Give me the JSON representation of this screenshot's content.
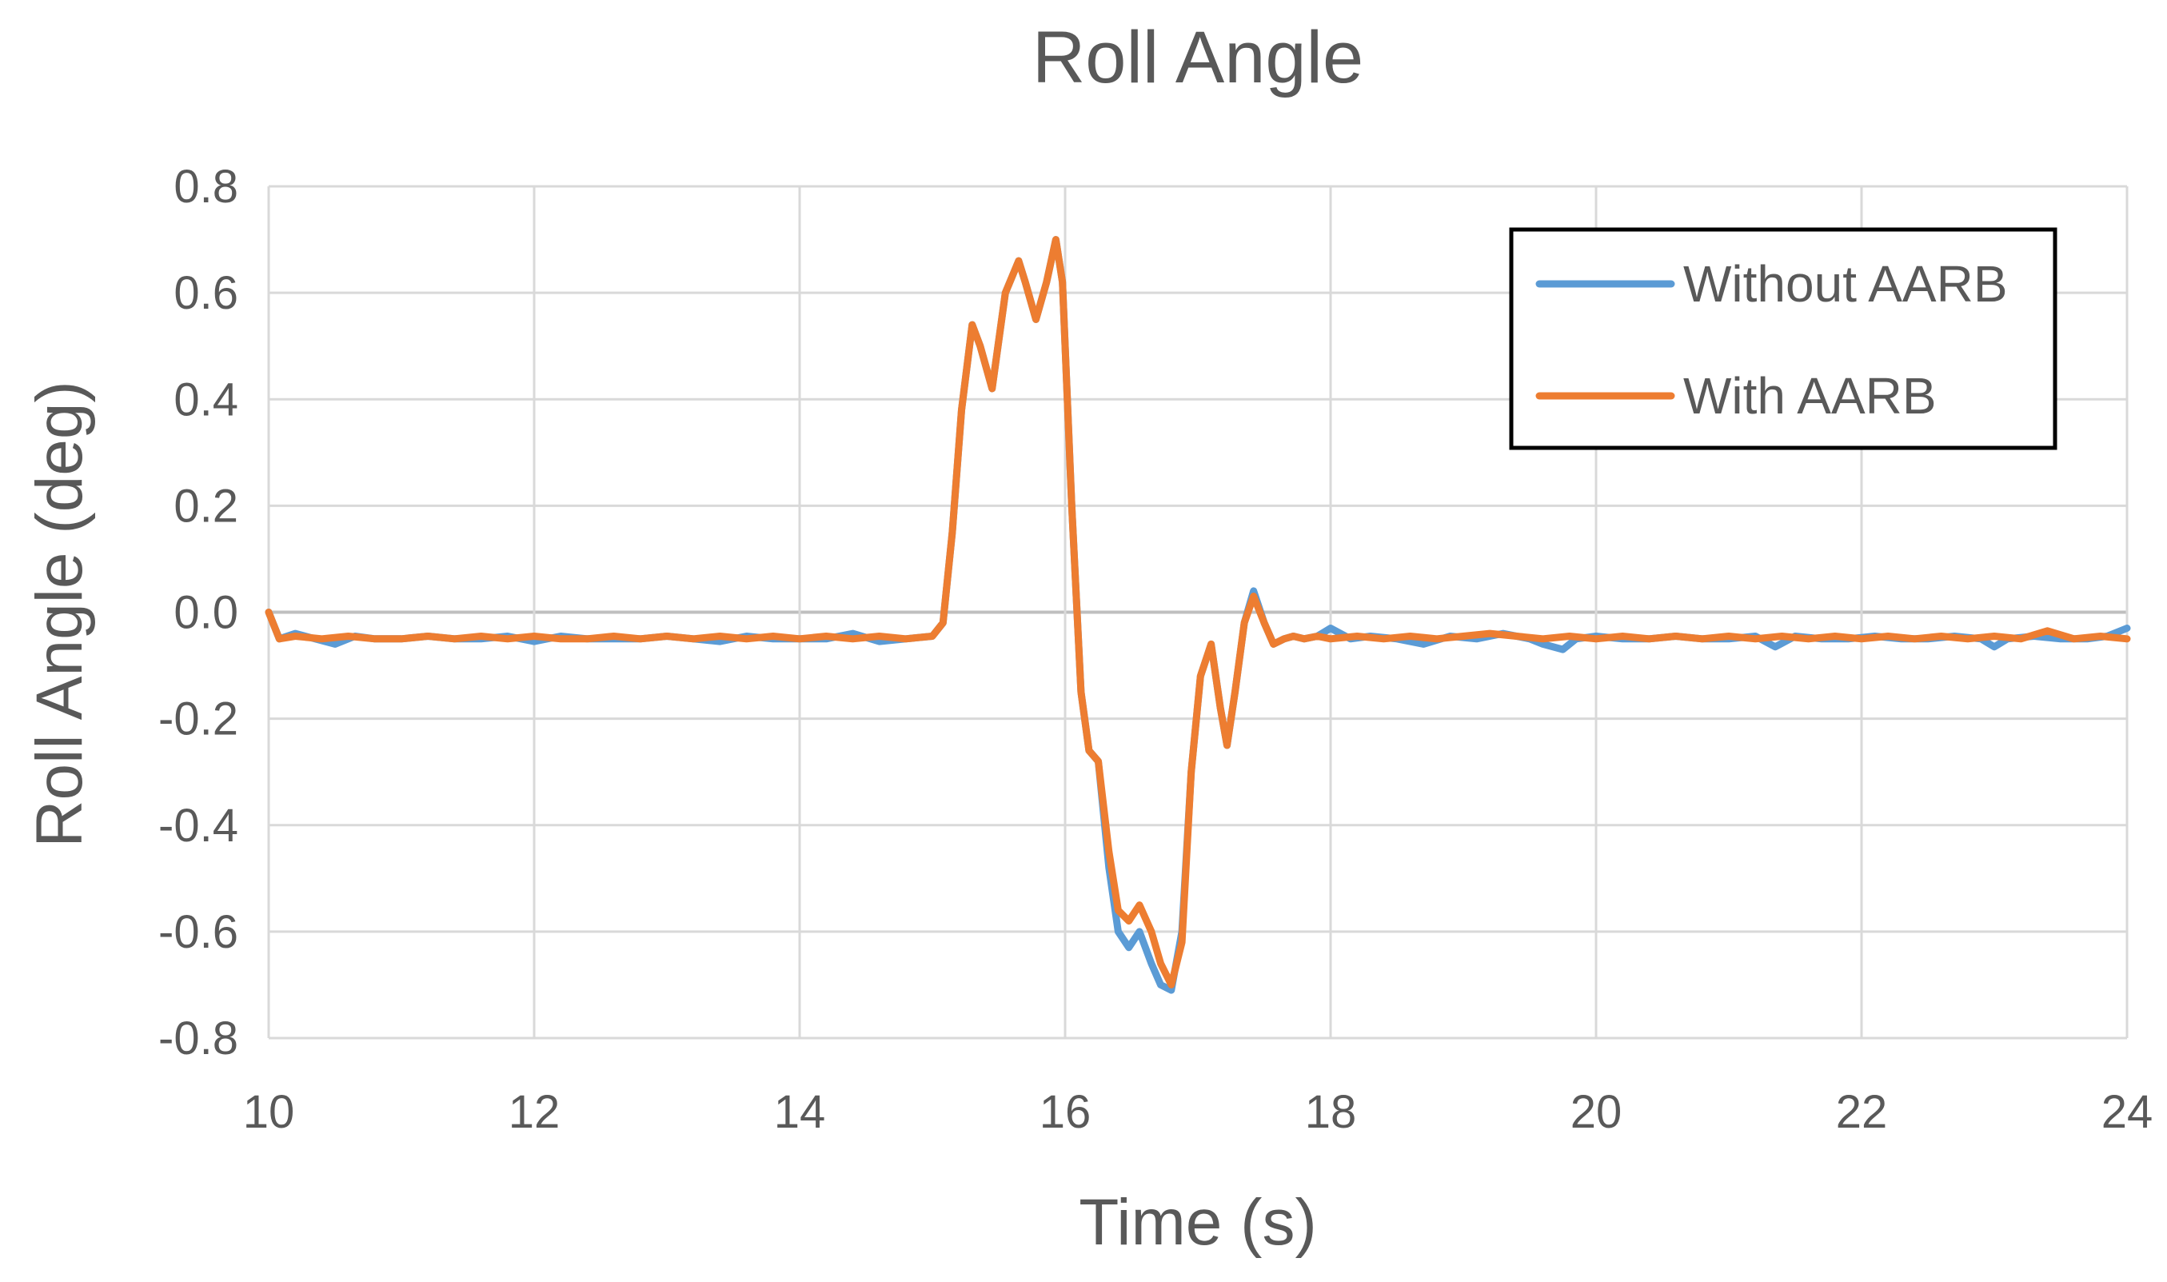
{
  "chart_data": {
    "type": "line",
    "title": "Roll Angle",
    "xlabel": "Time (s)",
    "ylabel": "Roll Angle (deg)",
    "xlim": [
      10,
      24
    ],
    "ylim": [
      -0.8,
      0.8
    ],
    "x_ticks": [
      10,
      12,
      14,
      16,
      18,
      20,
      22,
      24
    ],
    "x_tick_labels": [
      "10",
      "12",
      "14",
      "16",
      "18",
      "20",
      "22",
      "24"
    ],
    "y_ticks": [
      0.8,
      0.6,
      0.4,
      0.2,
      0.0,
      -0.2,
      -0.4,
      -0.6,
      -0.8
    ],
    "y_tick_labels": [
      "0.8",
      "0.6",
      "0.4",
      "0.2",
      "0.0",
      "-0.2",
      "-0.4",
      "-0.6",
      "-0.8"
    ],
    "grid": true,
    "legend_position": "top-right",
    "series": [
      {
        "name": "Without AARB",
        "color": "#5B9BD5",
        "x": [
          10.0,
          10.08,
          10.2,
          10.35,
          10.5,
          10.65,
          10.8,
          11.0,
          11.2,
          11.4,
          11.6,
          11.8,
          12.0,
          12.2,
          12.4,
          12.6,
          12.8,
          13.0,
          13.2,
          13.4,
          13.6,
          13.8,
          14.0,
          14.2,
          14.4,
          14.6,
          14.8,
          15.0,
          15.08,
          15.15,
          15.22,
          15.3,
          15.36,
          15.45,
          15.55,
          15.65,
          15.7,
          15.78,
          15.86,
          15.93,
          15.98,
          16.05,
          16.12,
          16.18,
          16.25,
          16.33,
          16.4,
          16.48,
          16.56,
          16.65,
          16.72,
          16.8,
          16.88,
          16.95,
          17.02,
          17.1,
          17.17,
          17.22,
          17.28,
          17.35,
          17.42,
          17.5,
          17.57,
          17.65,
          17.72,
          17.8,
          17.9,
          18.0,
          18.15,
          18.3,
          18.5,
          18.7,
          18.9,
          19.1,
          19.3,
          19.5,
          19.6,
          19.75,
          19.85,
          20.0,
          20.2,
          20.4,
          20.6,
          20.8,
          21.0,
          21.2,
          21.35,
          21.5,
          21.7,
          21.9,
          22.1,
          22.3,
          22.5,
          22.7,
          22.9,
          23.0,
          23.1,
          23.3,
          23.5,
          23.7,
          23.85,
          24.0
        ],
        "values": [
          0.0,
          -0.05,
          -0.04,
          -0.05,
          -0.06,
          -0.045,
          -0.05,
          -0.05,
          -0.045,
          -0.05,
          -0.05,
          -0.045,
          -0.055,
          -0.045,
          -0.05,
          -0.05,
          -0.05,
          -0.045,
          -0.05,
          -0.055,
          -0.045,
          -0.05,
          -0.05,
          -0.05,
          -0.04,
          -0.055,
          -0.05,
          -0.045,
          -0.02,
          0.15,
          0.38,
          0.54,
          0.5,
          0.42,
          0.6,
          0.66,
          0.62,
          0.55,
          0.62,
          0.7,
          0.62,
          0.2,
          -0.15,
          -0.26,
          -0.28,
          -0.48,
          -0.6,
          -0.63,
          -0.6,
          -0.66,
          -0.7,
          -0.71,
          -0.6,
          -0.3,
          -0.12,
          -0.06,
          -0.18,
          -0.25,
          -0.15,
          -0.02,
          0.04,
          -0.02,
          -0.06,
          -0.05,
          -0.045,
          -0.05,
          -0.045,
          -0.03,
          -0.05,
          -0.045,
          -0.05,
          -0.06,
          -0.045,
          -0.05,
          -0.04,
          -0.05,
          -0.06,
          -0.07,
          -0.05,
          -0.045,
          -0.05,
          -0.05,
          -0.045,
          -0.05,
          -0.05,
          -0.045,
          -0.065,
          -0.045,
          -0.05,
          -0.05,
          -0.045,
          -0.05,
          -0.05,
          -0.045,
          -0.05,
          -0.065,
          -0.05,
          -0.045,
          -0.05,
          -0.05,
          -0.045,
          -0.03
        ]
      },
      {
        "name": "With AARB",
        "color": "#ED7D31",
        "x": [
          10.0,
          10.08,
          10.2,
          10.4,
          10.6,
          10.8,
          11.0,
          11.2,
          11.4,
          11.6,
          11.8,
          12.0,
          12.2,
          12.4,
          12.6,
          12.8,
          13.0,
          13.2,
          13.4,
          13.6,
          13.8,
          14.0,
          14.2,
          14.4,
          14.6,
          14.8,
          15.0,
          15.08,
          15.15,
          15.22,
          15.3,
          15.36,
          15.45,
          15.55,
          15.65,
          15.7,
          15.78,
          15.86,
          15.93,
          15.98,
          16.05,
          16.12,
          16.18,
          16.25,
          16.33,
          16.4,
          16.48,
          16.56,
          16.65,
          16.72,
          16.8,
          16.88,
          16.95,
          17.02,
          17.1,
          17.17,
          17.22,
          17.28,
          17.35,
          17.42,
          17.5,
          17.57,
          17.65,
          17.72,
          17.8,
          17.9,
          18.0,
          18.2,
          18.4,
          18.6,
          18.8,
          19.0,
          19.2,
          19.4,
          19.6,
          19.8,
          20.0,
          20.2,
          20.4,
          20.6,
          20.8,
          21.0,
          21.2,
          21.4,
          21.6,
          21.8,
          22.0,
          22.2,
          22.4,
          22.6,
          22.8,
          23.0,
          23.2,
          23.4,
          23.6,
          23.8,
          24.0
        ],
        "values": [
          0.0,
          -0.05,
          -0.045,
          -0.05,
          -0.045,
          -0.05,
          -0.05,
          -0.045,
          -0.05,
          -0.045,
          -0.05,
          -0.045,
          -0.05,
          -0.05,
          -0.045,
          -0.05,
          -0.045,
          -0.05,
          -0.045,
          -0.05,
          -0.045,
          -0.05,
          -0.045,
          -0.05,
          -0.045,
          -0.05,
          -0.045,
          -0.02,
          0.15,
          0.38,
          0.54,
          0.5,
          0.42,
          0.6,
          0.66,
          0.62,
          0.55,
          0.62,
          0.7,
          0.62,
          0.2,
          -0.15,
          -0.26,
          -0.28,
          -0.45,
          -0.56,
          -0.58,
          -0.55,
          -0.6,
          -0.66,
          -0.7,
          -0.62,
          -0.3,
          -0.12,
          -0.06,
          -0.18,
          -0.25,
          -0.15,
          -0.02,
          0.03,
          -0.02,
          -0.06,
          -0.05,
          -0.045,
          -0.05,
          -0.045,
          -0.05,
          -0.045,
          -0.05,
          -0.045,
          -0.05,
          -0.045,
          -0.04,
          -0.045,
          -0.05,
          -0.045,
          -0.05,
          -0.045,
          -0.05,
          -0.045,
          -0.05,
          -0.045,
          -0.05,
          -0.045,
          -0.05,
          -0.045,
          -0.05,
          -0.045,
          -0.05,
          -0.045,
          -0.05,
          -0.045,
          -0.05,
          -0.035,
          -0.05,
          -0.045,
          -0.05
        ]
      }
    ]
  }
}
